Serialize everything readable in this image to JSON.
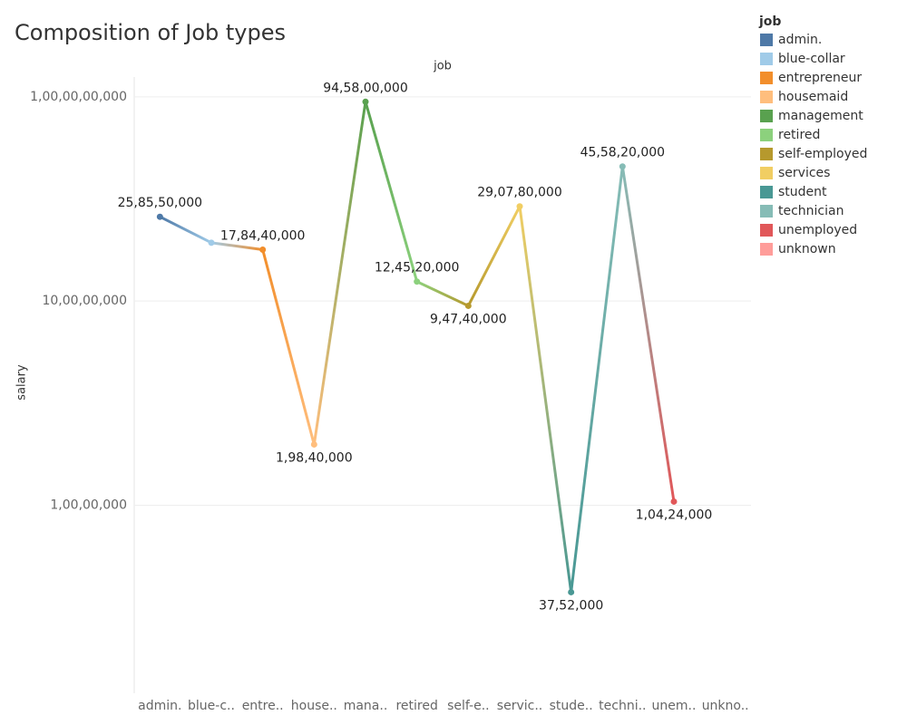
{
  "chart_data": {
    "type": "line",
    "title": "Composition of Job types",
    "x_label": "job",
    "y_label": "salary",
    "categories": [
      "admin.",
      "blue-c..",
      "entre..",
      "house..",
      "mana..",
      "retired",
      "self-e..",
      "servic..",
      "stude..",
      "techni..",
      "unem..",
      "unkno.."
    ],
    "values": [
      258550000,
      193000000,
      178440000,
      19840000,
      945800000,
      124520000,
      94740000,
      290780000,
      3752000,
      455820000,
      10424000,
      null
    ],
    "value_labels": [
      "25,85,50,000",
      null,
      "17,84,40,000",
      "1,98,40,000",
      "94,58,00,000",
      "12,45,20,000",
      "9,47,40,000",
      "29,07,80,000",
      "37,52,000",
      "45,58,20,000",
      "1,04,24,000",
      null
    ],
    "colors": [
      "#4e79a7",
      "#a0cbe8",
      "#f28e2b",
      "#ffbe7d",
      "#59a14f",
      "#8cd17d",
      "#b6992d",
      "#f1ce63",
      "#499894",
      "#86bcb6",
      "#e15759",
      "#ff9d9a"
    ],
    "log_scale": true,
    "grid": true,
    "ylim": [
      1200000,
      1250000000
    ],
    "yticks": [
      {
        "value": 10000000,
        "label": "1,00,00,000"
      },
      {
        "value": 100000000,
        "label": "10,00,00,000"
      },
      {
        "value": 1000000000,
        "label": "1,00,00,00,000"
      }
    ],
    "legend": {
      "position": "right",
      "title": "job",
      "items": [
        "admin.",
        "blue-collar",
        "entrepreneur",
        "housemaid",
        "management",
        "retired",
        "self-employed",
        "services",
        "student",
        "technician",
        "unemployed",
        "unknown"
      ]
    }
  }
}
